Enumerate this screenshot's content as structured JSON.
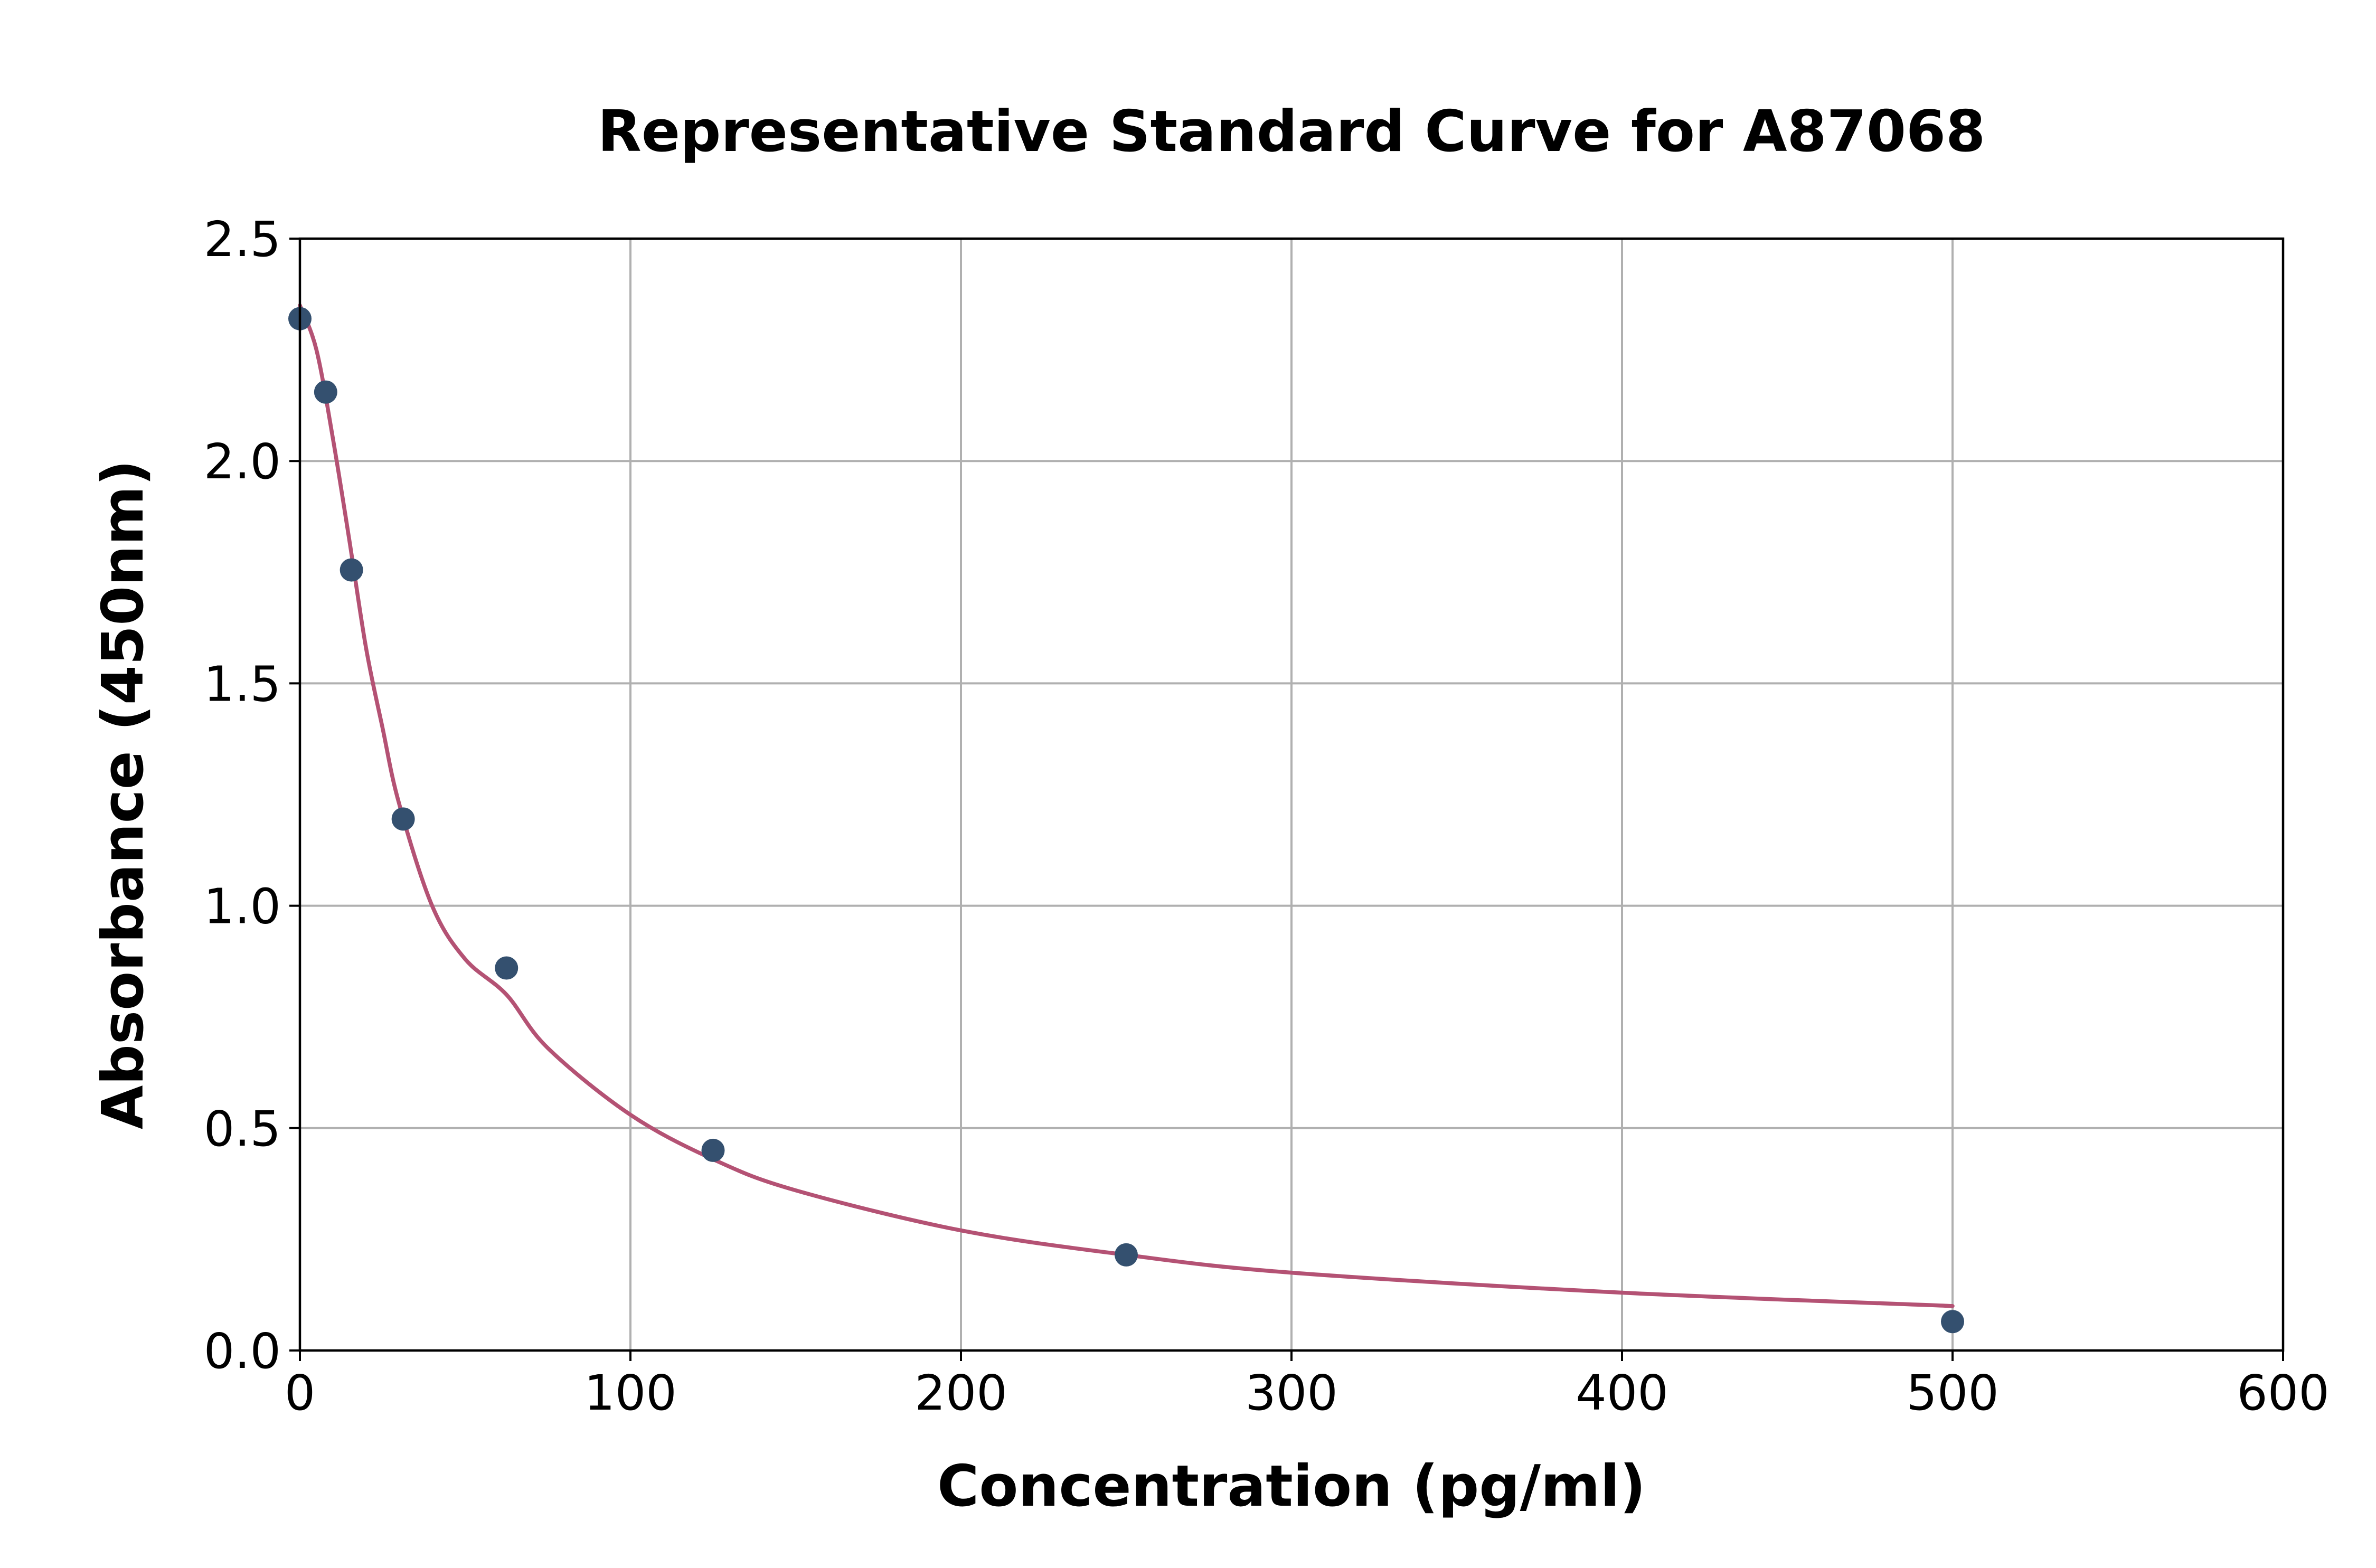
{
  "chart_data": {
    "type": "scatter",
    "title": "Representative Standard Curve for A87068",
    "xlabel": "Concentration (pg/ml)",
    "ylabel": "Absorbance (450nm)",
    "xlim": [
      0,
      600
    ],
    "ylim": [
      0,
      2.5
    ],
    "xticks": [
      0,
      100,
      200,
      300,
      400,
      500,
      600
    ],
    "yticks": [
      0.0,
      0.5,
      1.0,
      1.5,
      2.0,
      2.5
    ],
    "xtick_labels": [
      "0",
      "100",
      "200",
      "300",
      "400",
      "500",
      "600"
    ],
    "ytick_labels": [
      "0.0",
      "0.5",
      "1.0",
      "1.5",
      "2.0",
      "2.5"
    ],
    "grid": true,
    "legend": "none",
    "series": [
      {
        "kind": "points",
        "color": "#34506f",
        "x": [
          0,
          7.8,
          15.6,
          31.25,
          62.5,
          125,
          250,
          500
        ],
        "y": [
          2.32,
          2.155,
          1.755,
          1.195,
          0.86,
          0.45,
          0.215,
          0.065
        ]
      },
      {
        "kind": "fitted-curve",
        "color": "#b45274",
        "x": [
          0,
          5,
          10,
          15,
          20,
          25,
          30,
          40,
          50,
          62.5,
          75,
          100,
          125,
          150,
          200,
          250,
          300,
          400,
          500
        ],
        "y": [
          2.35,
          2.25,
          2.05,
          1.82,
          1.58,
          1.4,
          1.23,
          1.0,
          0.88,
          0.8,
          0.68,
          0.53,
          0.43,
          0.36,
          0.27,
          0.215,
          0.175,
          0.13,
          0.1
        ]
      }
    ]
  }
}
